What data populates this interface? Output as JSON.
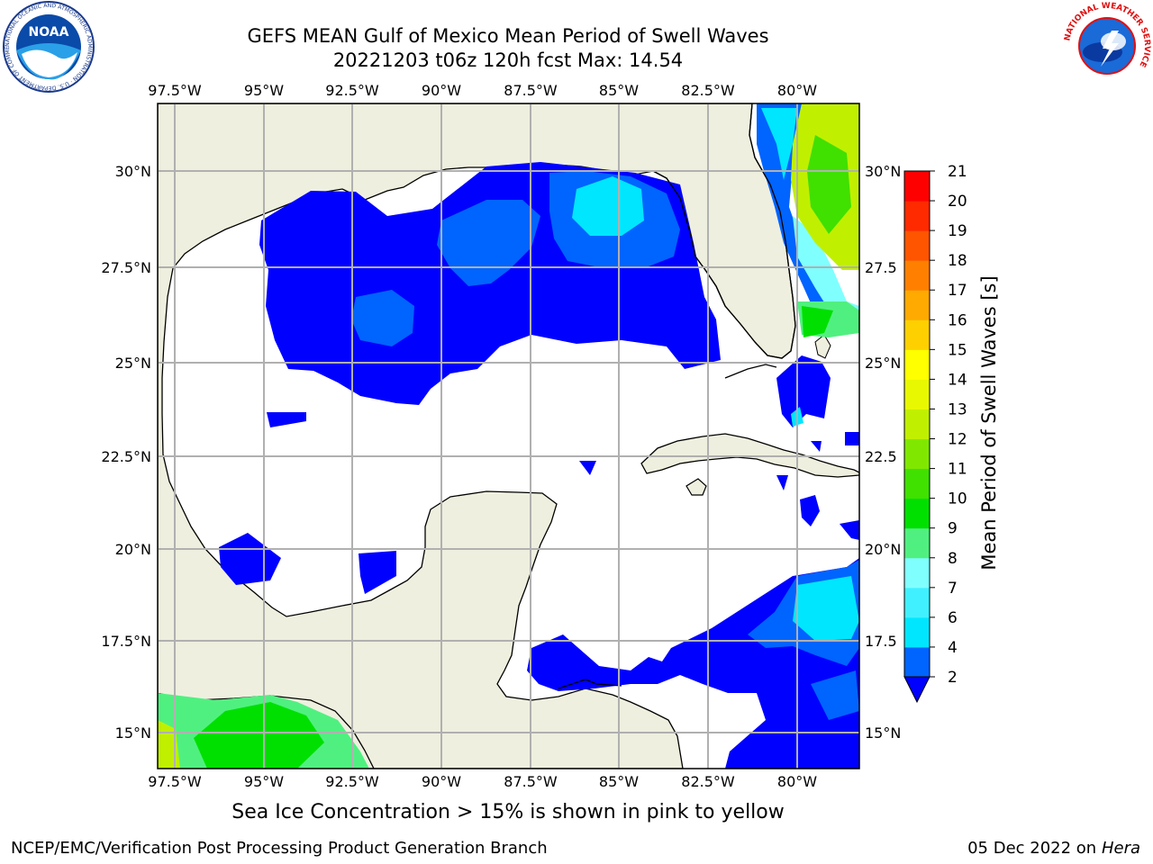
{
  "header": {
    "title_line1": "GEFS MEAN Gulf of Mexico Mean Period of Swell Waves",
    "title_line2": "20221203 t06z 120h fcst   Max: 14.54"
  },
  "map": {
    "lon_ticks": [
      "97.5°W",
      "95°W",
      "92.5°W",
      "90°W",
      "87.5°W",
      "85°W",
      "82.5°W",
      "80°W"
    ],
    "lat_ticks": [
      "30°N",
      "27.5°N",
      "25°N",
      "22.5°N",
      "20°N",
      "17.5°N",
      "15°N"
    ],
    "lat_ticks_right": [
      "30°N",
      "27.5",
      "25°N",
      "22.5",
      "20°N",
      "17.5",
      "15°N"
    ],
    "lon_range": [
      -98,
      -79
    ],
    "lat_range": [
      14,
      31.5
    ],
    "grid": true
  },
  "colorbar": {
    "label": "Mean Period of Swell Waves [s]",
    "ticks": [
      "2",
      "4",
      "6",
      "7",
      "8",
      "9",
      "10",
      "11",
      "12",
      "13",
      "14",
      "15",
      "16",
      "17",
      "18",
      "19",
      "20",
      "21"
    ],
    "colors": [
      "#0064ff",
      "#00c8ff",
      "#00e6ff",
      "#40f0ff",
      "#80ffff",
      "#50f080",
      "#00e000",
      "#40e000",
      "#80e800",
      "#c0f000",
      "#e8f800",
      "#ffff00",
      "#ffd000",
      "#ffaa00",
      "#ff8000",
      "#ff5500",
      "#ff2a00",
      "#ff0000"
    ],
    "extend_low_color": "#0000ff"
  },
  "caption": "Sea Ice Concentration > 15% is shown in pink to yellow",
  "footer": {
    "org": "NCEP/EMC/Verification Post Processing Product Generation Branch",
    "date": "05 Dec 2022 on",
    "host": "Hera"
  },
  "logos": {
    "noaa": {
      "text": "NOAA",
      "ring": "NATIONAL OCEANIC AND ATMOSPHERIC ADMINISTRATION · U.S. DEPARTMENT OF COMMERCE"
    },
    "nws": {
      "ring": "NATIONAL WEATHER SERVICE"
    }
  }
}
